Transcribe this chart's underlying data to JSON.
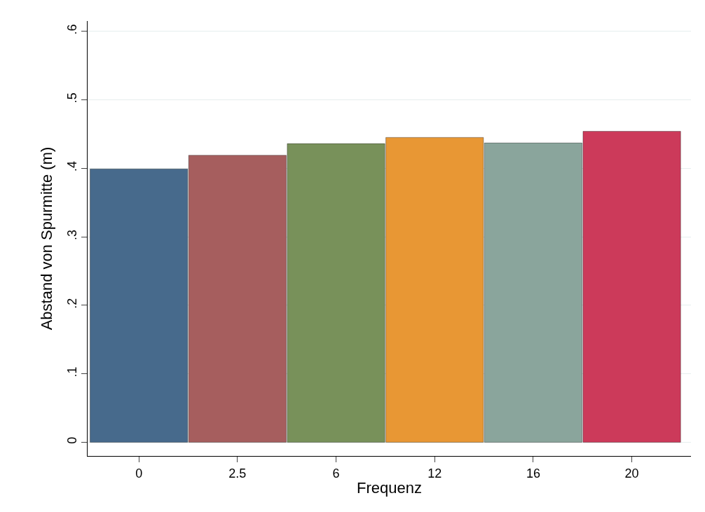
{
  "chart_data": {
    "type": "bar",
    "xlabel": "Frequenz",
    "ylabel": "Abstand von Spurmitte (m)",
    "categories": [
      "0",
      "2.5",
      "6",
      "12",
      "16",
      "20"
    ],
    "values": [
      0.399,
      0.419,
      0.436,
      0.445,
      0.437,
      0.454
    ],
    "colors": [
      "#476a8c",
      "#a65e5e",
      "#78915a",
      "#e89734",
      "#8aa59c",
      "#cc3a5a"
    ],
    "ylim": [
      -0.02,
      0.615
    ],
    "yticks": [
      0,
      {
        "value": 0.1,
        "label": ".1"
      },
      {
        "value": 0.2,
        "label": ".2"
      },
      {
        "value": 0.3,
        "label": ".3"
      },
      {
        "value": 0.4,
        "label": ".4"
      },
      {
        "value": 0.5,
        "label": ".5"
      },
      {
        "value": 0.6,
        "label": ".6"
      }
    ],
    "grid": "y"
  }
}
